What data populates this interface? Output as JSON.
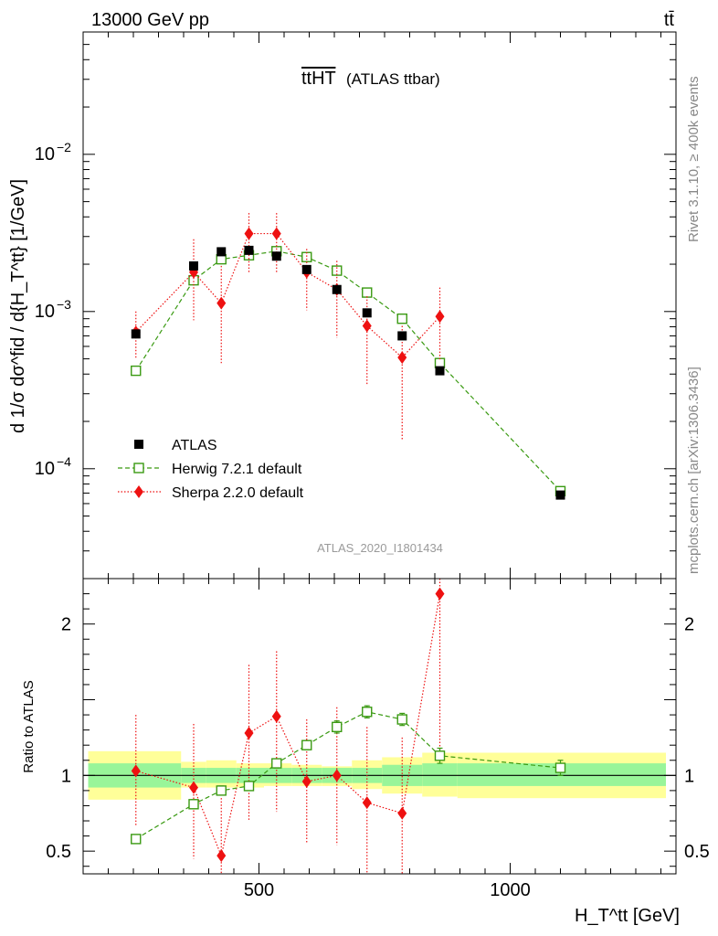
{
  "header": {
    "left": "13000 GeV pp",
    "right": "tt̄"
  },
  "side": {
    "rivet": "Rivet 3.1.10, ≥ 400k events",
    "mcplots": "mcplots.cern.ch [arXiv:1306.3436]"
  },
  "plot_title": {
    "main": "ttHT",
    "sub": "(ATLAS ttbar)"
  },
  "analysis_tag": "ATLAS_2020_I1801434",
  "colors": {
    "atlas": "#000000",
    "herwig": "#3a9a12",
    "sherpa": "#ee1111",
    "band_inner": "#99f599",
    "band_outer": "#ffff99"
  },
  "chart_data": [
    {
      "type": "scatter",
      "panel": "main",
      "ylabel": "d 1/σ dσ^fid / d{H_T^tt} [1/GeV]",
      "xlim": [
        150,
        1330
      ],
      "ylim": [
        2e-05,
        0.06
      ],
      "yscale": "log",
      "y_ticks": [
        {
          "value": 0.0001,
          "base": "10",
          "exp": "−4"
        },
        {
          "value": 0.001,
          "base": "10",
          "exp": "−3"
        },
        {
          "value": 0.01,
          "base": "10",
          "exp": "−2"
        }
      ],
      "legend_position": "lower-left",
      "series": [
        {
          "name": "ATLAS",
          "style": "square-filled",
          "x": [
            255,
            370,
            425,
            480,
            535,
            595,
            655,
            715,
            785,
            860,
            1100
          ],
          "y": [
            0.00072,
            0.00195,
            0.0024,
            0.00245,
            0.00225,
            0.00185,
            0.00138,
            0.00098,
            0.0007,
            0.00042,
            6.8e-05
          ]
        },
        {
          "name": "Herwig 7.2.1 default",
          "style": "square-open-dashed",
          "x": [
            255,
            370,
            425,
            480,
            535,
            595,
            655,
            715,
            785,
            860,
            1100
          ],
          "y": [
            0.00042,
            0.00158,
            0.00215,
            0.00228,
            0.00242,
            0.00222,
            0.00182,
            0.00132,
            0.0009,
            0.00047,
            7.2e-05
          ],
          "err_lo": [
            2e-05,
            7e-05,
            8e-05,
            8e-05,
            8e-05,
            8e-05,
            7e-05,
            5e-05,
            4e-05,
            2e-05,
            4e-06
          ],
          "err_hi": [
            2e-05,
            7e-05,
            8e-05,
            8e-05,
            8e-05,
            8e-05,
            7e-05,
            5e-05,
            4e-05,
            2e-05,
            4e-06
          ]
        },
        {
          "name": "Sherpa 2.2.0 default",
          "style": "diamond-dotted",
          "x": [
            255,
            370,
            425,
            480,
            535,
            595,
            655,
            715,
            785,
            860
          ],
          "y": [
            0.00074,
            0.00178,
            0.00113,
            0.00313,
            0.00313,
            0.00178,
            0.00138,
            0.00081,
            0.00051,
            0.00093
          ],
          "err_lo": [
            0.00024,
            0.0009,
            0.00066,
            0.00135,
            0.00135,
            0.00076,
            0.0007,
            0.00047,
            0.00036,
            0.00044
          ],
          "err_hi": [
            0.00026,
            0.0011,
            0.00082,
            0.0011,
            0.0011,
            0.00072,
            0.00072,
            0.00044,
            0.0003,
            0.00049
          ]
        }
      ]
    },
    {
      "type": "scatter",
      "panel": "ratio",
      "ylabel": "Ratio to ATLAS",
      "xlabel": "H_T^tt [GeV]",
      "xlim": [
        150,
        1330
      ],
      "ylim": [
        0.35,
        2.3
      ],
      "x_ticks": [
        500,
        1000
      ],
      "y_ticks": [
        0.5,
        1,
        2
      ],
      "reference": 1,
      "bands": {
        "edges": [
          160,
          345,
          395,
          455,
          510,
          565,
          625,
          685,
          745,
          825,
          895,
          1310
        ],
        "inner_lo": [
          0.92,
          0.95,
          0.95,
          0.95,
          0.95,
          0.95,
          0.95,
          0.95,
          0.93,
          0.93,
          0.93
        ],
        "inner_hi": [
          1.08,
          1.05,
          1.05,
          1.05,
          1.05,
          1.05,
          1.05,
          1.05,
          1.07,
          1.08,
          1.08
        ],
        "outer_lo": [
          0.84,
          0.92,
          0.92,
          0.92,
          0.93,
          0.93,
          0.93,
          0.91,
          0.88,
          0.86,
          0.85
        ],
        "outer_hi": [
          1.16,
          1.09,
          1.1,
          1.08,
          1.08,
          1.07,
          1.06,
          1.1,
          1.12,
          1.15,
          1.15
        ]
      },
      "series": [
        {
          "name": "Herwig 7.2.1 default",
          "style": "square-open-dashed",
          "x": [
            255,
            370,
            425,
            480,
            535,
            595,
            655,
            715,
            785,
            860,
            1100
          ],
          "y": [
            0.58,
            0.81,
            0.9,
            0.93,
            1.08,
            1.2,
            1.32,
            1.42,
            1.37,
            1.13,
            1.05
          ],
          "err_lo": [
            0.02,
            0.03,
            0.03,
            0.03,
            0.03,
            0.03,
            0.04,
            0.04,
            0.04,
            0.05,
            0.05
          ],
          "err_hi": [
            0.02,
            0.03,
            0.03,
            0.03,
            0.03,
            0.03,
            0.04,
            0.04,
            0.04,
            0.05,
            0.05
          ]
        },
        {
          "name": "Sherpa 2.2.0 default",
          "style": "diamond-dotted",
          "x": [
            255,
            370,
            425,
            480,
            535,
            595,
            655,
            715,
            785,
            860
          ],
          "y": [
            1.03,
            0.92,
            0.47,
            1.28,
            1.39,
            0.96,
            1.0,
            0.82,
            0.75,
            2.2
          ],
          "err_lo": [
            0.37,
            0.47,
            0.3,
            0.58,
            0.63,
            0.41,
            0.46,
            0.5,
            0.5,
            1.05
          ],
          "err_hi": [
            0.37,
            0.42,
            0.38,
            0.45,
            0.43,
            0.41,
            0.45,
            0.5,
            0.5,
            0.9
          ]
        }
      ]
    }
  ]
}
